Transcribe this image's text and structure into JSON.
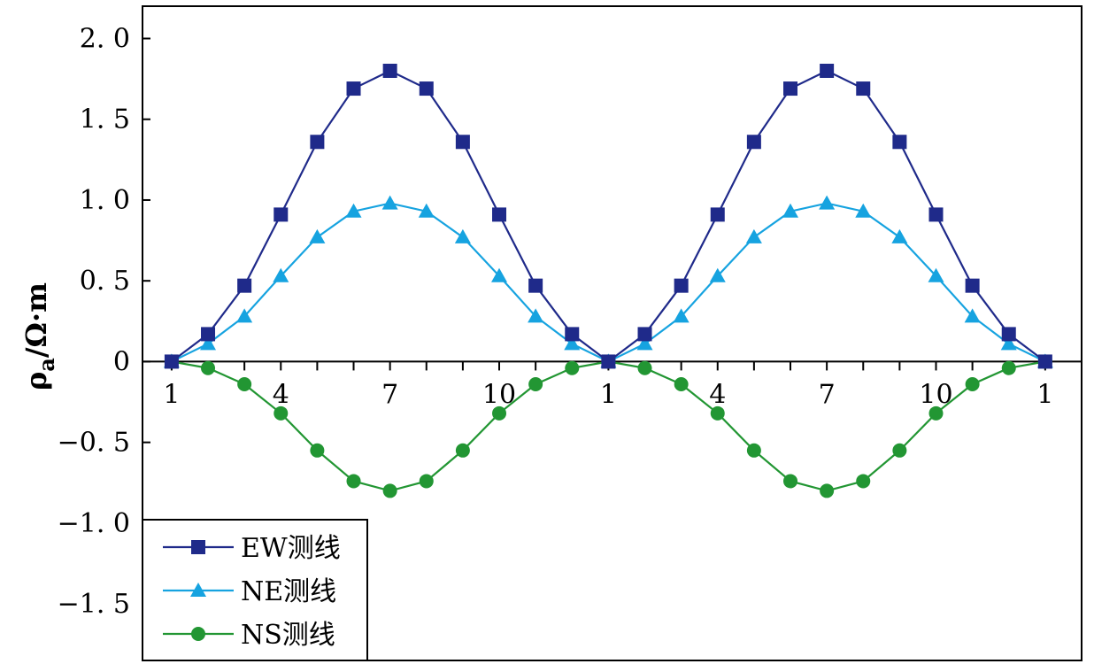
{
  "chart_data": {
    "type": "line",
    "title": "",
    "xlabel": "",
    "ylabel": "ρa/Ω·m",
    "ylabel_main": "ρ",
    "ylabel_sub": "a",
    "ylabel_unit": "/Ω·m",
    "ylim": [
      -1.85,
      2.2
    ],
    "yticks": [
      -1.5,
      -1.0,
      -0.5,
      0,
      0.5,
      1.0,
      1.5,
      2.0
    ],
    "ytick_labels": [
      "−1. 5",
      "−1. 0",
      "−0. 5",
      "0",
      "0. 5",
      "1. 0",
      "1. 5",
      "2. 0"
    ],
    "x": [
      1,
      2,
      3,
      4,
      5,
      6,
      7,
      8,
      9,
      10,
      11,
      12,
      13,
      14,
      15,
      16,
      17,
      18,
      19,
      20,
      21,
      22,
      23,
      24,
      25
    ],
    "xlim": [
      0.2,
      26.0
    ],
    "xtick_labels": [
      {
        "x": 1,
        "label": "1"
      },
      {
        "x": 4,
        "label": "4"
      },
      {
        "x": 7,
        "label": "7"
      },
      {
        "x": 10,
        "label": "10"
      },
      {
        "x": 13,
        "label": "1"
      },
      {
        "x": 16,
        "label": "4"
      },
      {
        "x": 19,
        "label": "7"
      },
      {
        "x": 22,
        "label": "10"
      },
      {
        "x": 25,
        "label": "1"
      }
    ],
    "grid": false,
    "legend_position": "bottom-left",
    "series": [
      {
        "name": "EW测线",
        "color": "#1f2a8a",
        "marker": "square",
        "values": [
          0.0,
          0.17,
          0.47,
          0.91,
          1.36,
          1.69,
          1.8,
          1.69,
          1.36,
          0.91,
          0.47,
          0.17,
          0.0,
          0.17,
          0.47,
          0.91,
          1.36,
          1.69,
          1.8,
          1.69,
          1.36,
          0.91,
          0.47,
          0.17,
          0.0
        ]
      },
      {
        "name": "NE测线",
        "color": "#16a3e0",
        "marker": "triangle",
        "values": [
          0.0,
          0.11,
          0.28,
          0.53,
          0.77,
          0.93,
          0.98,
          0.93,
          0.77,
          0.53,
          0.28,
          0.11,
          0.0,
          0.11,
          0.28,
          0.53,
          0.77,
          0.93,
          0.98,
          0.93,
          0.77,
          0.53,
          0.28,
          0.11,
          0.0
        ]
      },
      {
        "name": "NS测线",
        "color": "#229633",
        "marker": "circle",
        "values": [
          0.0,
          -0.04,
          -0.14,
          -0.32,
          -0.55,
          -0.74,
          -0.8,
          -0.74,
          -0.55,
          -0.32,
          -0.14,
          -0.04,
          0.0,
          -0.04,
          -0.14,
          -0.32,
          -0.55,
          -0.74,
          -0.8,
          -0.74,
          -0.55,
          -0.32,
          -0.14,
          -0.04,
          0.0
        ]
      }
    ]
  }
}
